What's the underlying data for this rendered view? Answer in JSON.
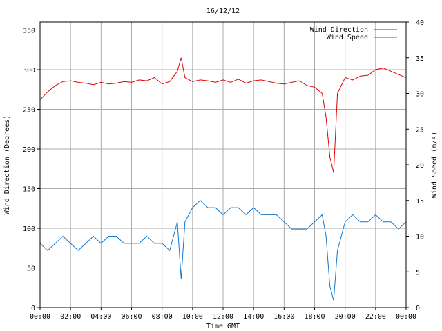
{
  "chart_data": {
    "type": "line",
    "title": "16/12/12",
    "xlabel": "Time GMT",
    "ylabel_left": "Wind Direction (Degrees)",
    "ylabel_right": "Wind Speed (m/s)",
    "x_ticks": [
      "00:00",
      "02:00",
      "04:00",
      "06:00",
      "08:00",
      "10:00",
      "12:00",
      "14:00",
      "16:00",
      "18:00",
      "20:00",
      "22:00",
      "00:00"
    ],
    "y_left_ticks": [
      "0",
      "50",
      "100",
      "150",
      "200",
      "250",
      "300",
      "350"
    ],
    "y_right_ticks": [
      "0",
      "5",
      "10",
      "15",
      "20",
      "25",
      "30",
      "35",
      "40"
    ],
    "xlim_hours": [
      0,
      24
    ],
    "ylim_left": [
      0,
      360
    ],
    "ylim_right": [
      0,
      40
    ],
    "grid": true,
    "legend_position": "top-right",
    "series": [
      {
        "name": "Wind Direction",
        "axis": "left",
        "color": "#e00000",
        "x": [
          0,
          0.5,
          1,
          1.5,
          2,
          2.5,
          3,
          3.5,
          4,
          4.5,
          5,
          5.5,
          6,
          6.5,
          7,
          7.5,
          8,
          8.5,
          9,
          9.25,
          9.5,
          10,
          10.5,
          11,
          11.5,
          12,
          12.5,
          13,
          13.5,
          14,
          14.5,
          15,
          15.5,
          16,
          16.5,
          17,
          17.5,
          18,
          18.5,
          18.75,
          19,
          19.25,
          19.5,
          20,
          20.5,
          21,
          21.5,
          22,
          22.5,
          23,
          23.5,
          24
        ],
        "values": [
          262,
          272,
          280,
          285,
          286,
          284,
          283,
          281,
          284,
          282,
          283,
          285,
          284,
          287,
          286,
          290,
          282,
          285,
          298,
          315,
          290,
          285,
          287,
          286,
          284,
          287,
          284,
          288,
          283,
          286,
          287,
          285,
          283,
          282,
          284,
          286,
          280,
          278,
          270,
          240,
          190,
          170,
          270,
          290,
          287,
          292,
          293,
          300,
          302,
          298,
          294,
          290
        ]
      },
      {
        "name": "Wind Speed",
        "axis": "right",
        "color": "#1177cc",
        "x": [
          0,
          0.5,
          1,
          1.5,
          2,
          2.5,
          3,
          3.5,
          4,
          4.5,
          5,
          5.5,
          6,
          6.5,
          7,
          7.5,
          8,
          8.5,
          9,
          9.25,
          9.5,
          10,
          10.5,
          11,
          11.5,
          12,
          12.5,
          13,
          13.5,
          14,
          14.5,
          15,
          15.5,
          16,
          16.5,
          17,
          17.5,
          18,
          18.5,
          18.75,
          19,
          19.25,
          19.5,
          20,
          20.5,
          21,
          21.5,
          22,
          22.5,
          23,
          23.5,
          24
        ],
        "values": [
          9,
          8,
          9,
          10,
          9,
          8,
          9,
          10,
          9,
          10,
          10,
          9,
          9,
          9,
          10,
          9,
          9,
          8,
          12,
          4,
          12,
          14,
          15,
          14,
          14,
          13,
          14,
          14,
          13,
          14,
          13,
          13,
          13,
          12,
          11,
          11,
          11,
          12,
          13,
          10,
          3,
          1,
          8,
          12,
          13,
          12,
          12,
          13,
          12,
          12,
          11,
          12
        ]
      }
    ]
  }
}
